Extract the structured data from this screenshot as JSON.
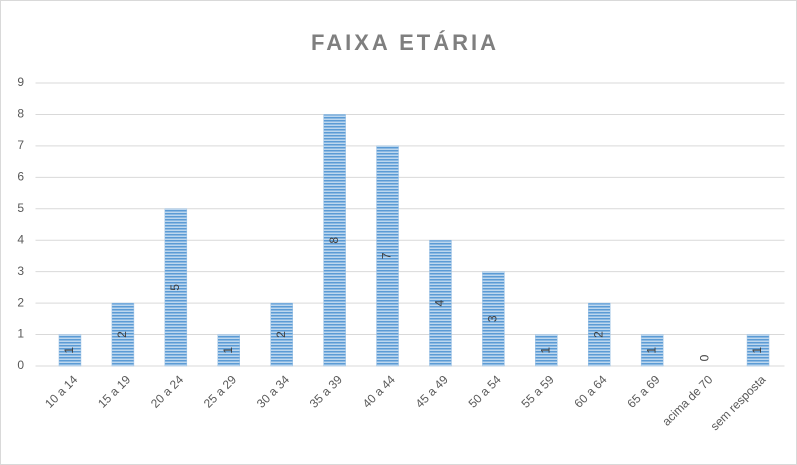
{
  "chart_data": {
    "type": "bar",
    "title": "FAIXA ETÁRIA",
    "categories": [
      "10 a 14",
      "15 a 19",
      "20 a 24",
      "25 a 29",
      "30 a 34",
      "35 a 39",
      "40 a 44",
      "45 a 49",
      "50 a 54",
      "55 a 59",
      "60 a 64",
      "65 a 69",
      "acima de 70",
      "sem resposta"
    ],
    "values": [
      1,
      2,
      5,
      1,
      2,
      8,
      7,
      4,
      3,
      1,
      2,
      1,
      0,
      1
    ],
    "color": "#5b9bd5",
    "ylim": [
      0,
      9
    ],
    "yticks": [
      0,
      1,
      2,
      3,
      4,
      5,
      6,
      7,
      8,
      9
    ],
    "grid": true
  }
}
